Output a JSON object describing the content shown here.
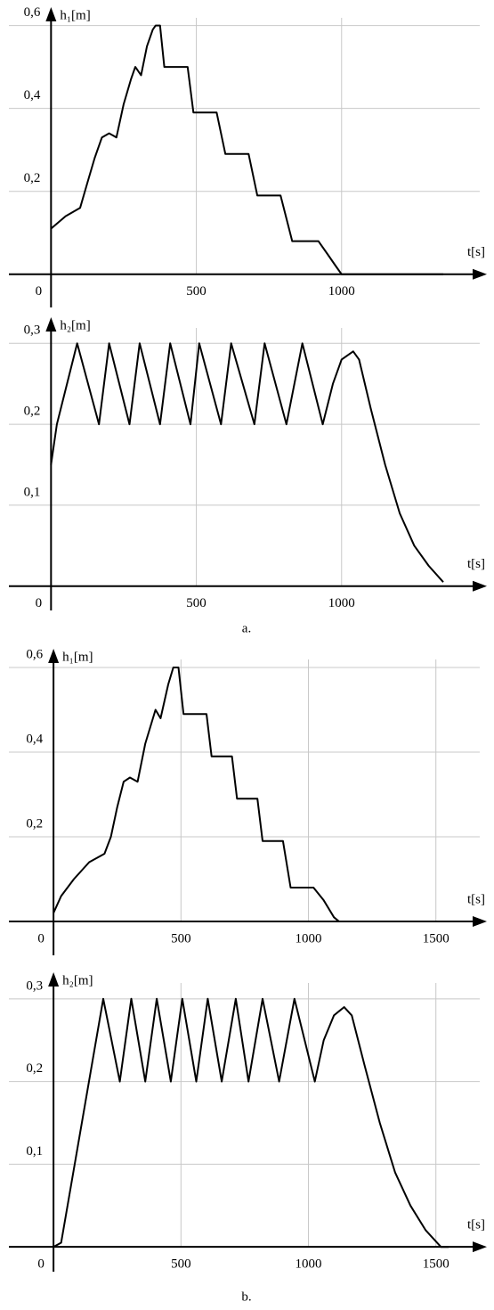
{
  "chart_data": [
    {
      "type": "line",
      "ylabel": "h₁[m]",
      "xlabel": "t[s]",
      "color": "#000000",
      "grid": true,
      "xlim": [
        -145,
        1500
      ],
      "ylim": [
        -0.08,
        0.64
      ],
      "xticks": [
        0,
        500,
        1000
      ],
      "yticks": [
        {
          "value": 0.2,
          "label": "0,2"
        },
        {
          "value": 0.4,
          "label": "0,4"
        },
        {
          "value": 0.6,
          "label": "0,6"
        }
      ],
      "x": [
        0,
        50,
        100,
        125,
        150,
        175,
        200,
        225,
        250,
        275,
        290,
        310,
        330,
        350,
        360,
        375,
        390,
        470,
        490,
        570,
        600,
        680,
        710,
        790,
        830,
        920,
        950,
        980,
        1000,
        1350
      ],
      "values": [
        0.11,
        0.14,
        0.16,
        0.22,
        0.28,
        0.33,
        0.34,
        0.33,
        0.41,
        0.47,
        0.5,
        0.48,
        0.55,
        0.59,
        0.6,
        0.6,
        0.5,
        0.5,
        0.39,
        0.39,
        0.29,
        0.29,
        0.19,
        0.19,
        0.08,
        0.08,
        0.05,
        0.02,
        0,
        0
      ]
    },
    {
      "type": "line",
      "ylabel": "h₂[m]",
      "xlabel": "t[s]",
      "color": "#000000",
      "grid": true,
      "caption": "a.",
      "xlim": [
        -145,
        1500
      ],
      "ylim": [
        -0.03,
        0.33
      ],
      "xticks": [
        0,
        500,
        1000
      ],
      "yticks": [
        {
          "value": 0.1,
          "label": "0,1"
        },
        {
          "value": 0.2,
          "label": "0,2"
        },
        {
          "value": 0.3,
          "label": "0,3"
        }
      ],
      "x": [
        0,
        20,
        90,
        165,
        200,
        270,
        305,
        375,
        410,
        480,
        510,
        585,
        620,
        700,
        735,
        810,
        865,
        935,
        970,
        1000,
        1040,
        1060,
        1100,
        1150,
        1200,
        1250,
        1300,
        1350
      ],
      "values": [
        0.15,
        0.2,
        0.3,
        0.2,
        0.3,
        0.2,
        0.3,
        0.2,
        0.3,
        0.2,
        0.3,
        0.2,
        0.3,
        0.2,
        0.3,
        0.2,
        0.3,
        0.2,
        0.25,
        0.28,
        0.29,
        0.28,
        0.22,
        0.15,
        0.09,
        0.05,
        0.025,
        0.005
      ]
    },
    {
      "type": "line",
      "ylabel": "h₁[m]",
      "xlabel": "t[s]",
      "color": "#000000",
      "grid": true,
      "xlim": [
        -175,
        1700
      ],
      "ylim": [
        -0.08,
        0.64
      ],
      "xticks": [
        0,
        500,
        1000,
        1500
      ],
      "yticks": [
        {
          "value": 0.2,
          "label": "0,2"
        },
        {
          "value": 0.4,
          "label": "0,4"
        },
        {
          "value": 0.6,
          "label": "0,6"
        }
      ],
      "x": [
        0,
        30,
        80,
        140,
        200,
        225,
        250,
        275,
        300,
        330,
        360,
        400,
        420,
        450,
        470,
        490,
        510,
        600,
        620,
        700,
        720,
        800,
        820,
        900,
        930,
        1020,
        1060,
        1100,
        1120,
        1550
      ],
      "values": [
        0.02,
        0.06,
        0.1,
        0.14,
        0.16,
        0.2,
        0.27,
        0.33,
        0.34,
        0.33,
        0.42,
        0.5,
        0.48,
        0.56,
        0.6,
        0.6,
        0.49,
        0.49,
        0.39,
        0.39,
        0.29,
        0.29,
        0.19,
        0.19,
        0.08,
        0.08,
        0.05,
        0.01,
        0,
        0
      ]
    },
    {
      "type": "line",
      "ylabel": "h₂[m]",
      "xlabel": "t[s]",
      "color": "#000000",
      "grid": true,
      "caption": "b.",
      "xlim": [
        -175,
        1700
      ],
      "ylim": [
        -0.03,
        0.33
      ],
      "xticks": [
        0,
        500,
        1000,
        1500
      ],
      "yticks": [
        {
          "value": 0.1,
          "label": "0,1"
        },
        {
          "value": 0.2,
          "label": "0,2"
        },
        {
          "value": 0.3,
          "label": "0,3"
        }
      ],
      "x": [
        0,
        30,
        195,
        260,
        305,
        360,
        405,
        460,
        505,
        560,
        605,
        660,
        715,
        765,
        820,
        885,
        945,
        1025,
        1060,
        1100,
        1140,
        1170,
        1220,
        1280,
        1340,
        1400,
        1460,
        1520,
        1550
      ],
      "values": [
        0,
        0.005,
        0.3,
        0.2,
        0.3,
        0.2,
        0.3,
        0.2,
        0.3,
        0.2,
        0.3,
        0.2,
        0.3,
        0.2,
        0.3,
        0.2,
        0.3,
        0.2,
        0.25,
        0.28,
        0.29,
        0.28,
        0.22,
        0.15,
        0.09,
        0.05,
        0.02,
        0,
        0
      ]
    }
  ]
}
